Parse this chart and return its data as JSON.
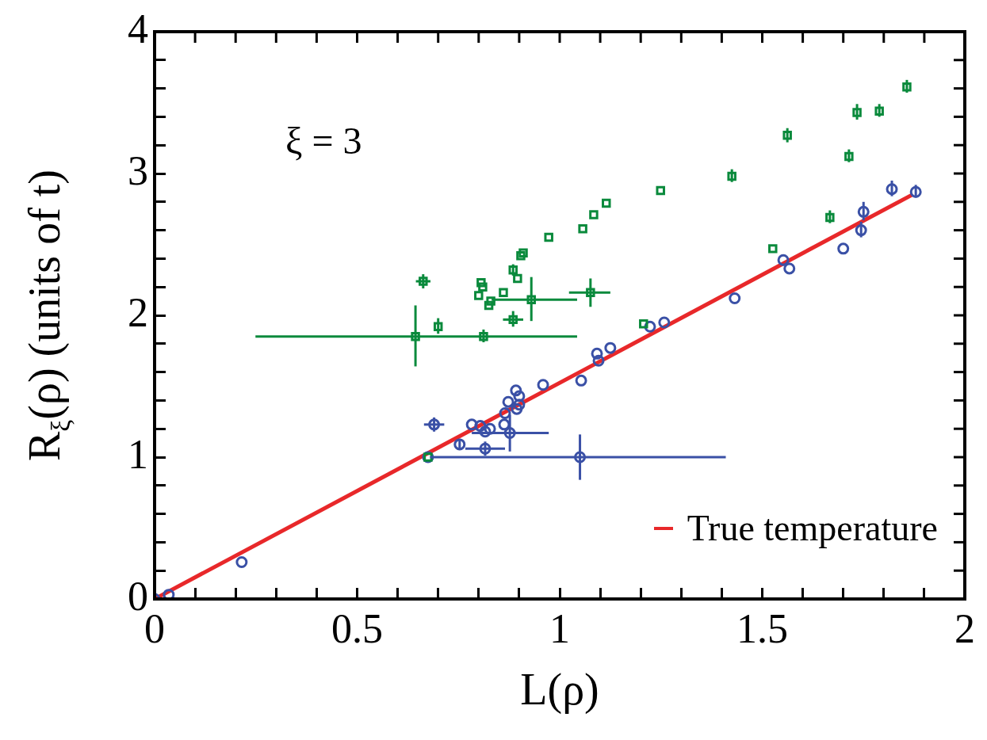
{
  "chart_data": {
    "type": "scatter",
    "xlabel": "L(ρ)",
    "ylabel": "R$_{ξ}$(ρ)  (units of t)",
    "annotations": [
      "ξ = 3"
    ],
    "xlim": [
      0,
      2
    ],
    "ylim": [
      0,
      4
    ],
    "xticks": [
      0,
      {
        "value": 0.1,
        "label": null
      },
      {
        "value": 0.2,
        "label": null
      },
      {
        "value": 0.3,
        "label": null
      },
      {
        "value": 0.4,
        "label": null
      },
      0.5,
      {
        "value": 0.6,
        "label": null
      },
      {
        "value": 0.7,
        "label": null
      },
      {
        "value": 0.8,
        "label": null
      },
      {
        "value": 0.9,
        "label": null
      },
      1,
      {
        "value": 1.1,
        "label": null
      },
      {
        "value": 1.2,
        "label": null
      },
      {
        "value": 1.3,
        "label": null
      },
      {
        "value": 1.4,
        "label": null
      },
      1.5,
      {
        "value": 1.6,
        "label": null
      },
      {
        "value": 1.7,
        "label": null
      },
      {
        "value": 1.8,
        "label": null
      },
      {
        "value": 1.9,
        "label": null
      },
      2
    ],
    "yticks": [
      0,
      {
        "value": 0.2,
        "label": null
      },
      {
        "value": 0.4,
        "label": null
      },
      {
        "value": 0.6,
        "label": null
      },
      {
        "value": 0.8,
        "label": null
      },
      1,
      {
        "value": 1.2,
        "label": null
      },
      {
        "value": 1.4,
        "label": null
      },
      {
        "value": 1.6,
        "label": null
      },
      {
        "value": 1.8,
        "label": null
      },
      2,
      {
        "value": 2.2,
        "label": null
      },
      {
        "value": 2.4,
        "label": null
      },
      {
        "value": 2.6,
        "label": null
      },
      {
        "value": 2.8,
        "label": null
      },
      3,
      {
        "value": 3.2,
        "label": null
      },
      {
        "value": 3.4,
        "label": null
      },
      {
        "value": 3.6,
        "label": null
      },
      {
        "value": 3.8,
        "label": null
      },
      4
    ],
    "grid": false,
    "legend": "bottom right",
    "series": [
      {
        "type": "scatter",
        "marker": "square",
        "color": "#0a8a3c",
        "x": [
          0.675,
          0.644,
          0.7,
          0.812,
          0.663,
          0.8,
          0.806,
          0.81,
          0.825,
          0.83,
          0.861,
          0.885,
          0.93,
          1.076,
          0.885,
          0.896,
          0.91,
          0.904,
          0.973,
          1.057,
          1.084,
          1.115,
          1.249,
          1.207,
          1.425,
          1.526,
          1.562,
          1.667,
          1.714,
          1.734,
          1.789,
          1.857
        ],
        "values": [
          1.0,
          1.85,
          1.92,
          1.85,
          2.24,
          2.14,
          2.23,
          2.2,
          2.07,
          2.1,
          2.16,
          1.97,
          2.11,
          2.16,
          2.32,
          2.26,
          2.44,
          2.42,
          2.55,
          2.61,
          2.71,
          2.79,
          2.88,
          1.94,
          2.98,
          2.47,
          3.27,
          2.69,
          3.12,
          3.43,
          3.44,
          3.61
        ],
        "errors": [
          null,
          [
            1.64,
            2.07
          ],
          [
            1.87,
            1.98
          ],
          [
            1.81,
            1.9
          ],
          [
            2.19,
            2.29
          ],
          null,
          null,
          null,
          null,
          null,
          null,
          [
            1.92,
            2.03
          ],
          [
            1.96,
            2.27
          ],
          [
            2.06,
            2.26
          ],
          [
            2.28,
            2.36
          ],
          null,
          null,
          null,
          null,
          null,
          null,
          null,
          null,
          null,
          [
            2.94,
            3.03
          ],
          null,
          [
            3.22,
            3.32
          ],
          [
            2.65,
            2.74
          ],
          [
            3.08,
            3.17
          ],
          [
            3.38,
            3.49
          ],
          [
            3.4,
            3.49
          ],
          [
            3.57,
            3.66
          ]
        ],
        "xerrors": [
          null,
          [
            0.249,
            1.043
          ],
          null,
          null,
          [
            0.645,
            0.681
          ],
          null,
          null,
          null,
          null,
          null,
          null,
          [
            0.86,
            0.91
          ],
          [
            0.832,
            1.043
          ],
          [
            1.023,
            1.125
          ],
          null,
          null,
          null,
          null,
          null,
          null,
          null,
          null,
          null,
          null,
          null,
          null,
          null,
          null,
          null,
          null,
          null,
          null
        ]
      },
      {
        "type": "scatter",
        "marker": "circle",
        "color": "#3a50a6",
        "x": [
          0,
          0.035,
          0.215,
          0.675,
          1.05,
          0.69,
          0.753,
          0.783,
          0.804,
          0.816,
          0.816,
          0.828,
          0.863,
          0.877,
          0.865,
          0.873,
          0.894,
          0.9,
          0.892,
          0.9,
          0.959,
          1.053,
          1.092,
          1.096,
          1.125,
          1.223,
          1.258,
          1.432,
          1.552,
          1.567,
          1.7,
          1.744,
          1.75,
          1.82,
          1.879
        ],
        "values": [
          0,
          0.03,
          0.26,
          1.0,
          1.0,
          1.23,
          1.09,
          1.23,
          1.22,
          1.06,
          1.18,
          1.2,
          1.23,
          1.17,
          1.31,
          1.39,
          1.34,
          1.37,
          1.47,
          1.43,
          1.51,
          1.54,
          1.73,
          1.68,
          1.77,
          1.92,
          1.95,
          2.12,
          2.39,
          2.33,
          2.47,
          2.6,
          2.73,
          2.89,
          2.87
        ],
        "errors": [
          null,
          null,
          null,
          null,
          [
            0.84,
            1.16
          ],
          [
            1.18,
            1.28
          ],
          [
            1.05,
            1.13
          ],
          null,
          null,
          [
            1.01,
            1.11
          ],
          null,
          null,
          null,
          [
            1.04,
            1.3
          ],
          null,
          null,
          null,
          null,
          null,
          null,
          null,
          null,
          null,
          null,
          null,
          null,
          null,
          null,
          null,
          null,
          null,
          [
            2.55,
            2.66
          ],
          [
            2.67,
            2.8
          ],
          [
            2.84,
            2.95
          ],
          [
            2.83,
            2.92
          ]
        ],
        "xerrors": [
          null,
          null,
          null,
          null,
          [
            0.68,
            1.41
          ],
          [
            0.665,
            0.715
          ],
          null,
          null,
          null,
          [
            0.767,
            0.865
          ],
          null,
          null,
          null,
          [
            0.783,
            0.973
          ],
          null,
          null,
          null,
          null,
          null,
          null,
          null,
          null,
          null,
          null,
          null,
          null,
          null,
          null,
          null,
          null,
          null,
          null,
          null,
          null,
          null
        ]
      },
      {
        "type": "line",
        "name": "True temperature",
        "color": "#e8282a",
        "line_style": "solid",
        "marker": "none",
        "x": [
          0,
          1.87
        ],
        "values": [
          0,
          2.85
        ]
      }
    ]
  }
}
